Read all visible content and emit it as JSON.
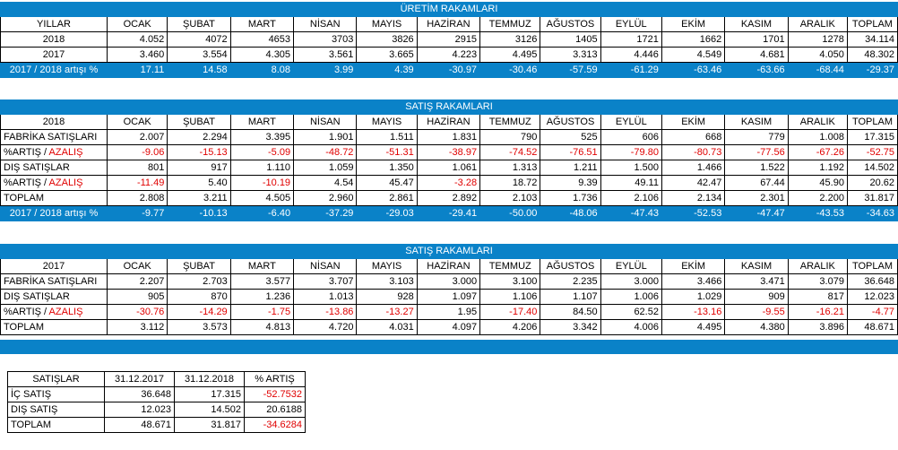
{
  "uretim": {
    "title": "ÜRETİM RAKAMLARI",
    "headers": [
      "YILLAR",
      "OCAK",
      "ŞUBAT",
      "MART",
      "NİSAN",
      "MAYIS",
      "HAZİRAN",
      "TEMMUZ",
      "AĞUSTOS",
      "EYLÜL",
      "EKİM",
      "KASIM",
      "ARALIK",
      "TOPLAM"
    ],
    "rows": [
      [
        "2018",
        "4.052",
        "4072",
        "4653",
        "3703",
        "3826",
        "2915",
        "3126",
        "1405",
        "1721",
        "1662",
        "1701",
        "1278",
        "34.114"
      ],
      [
        "2017",
        "3.460",
        "3.554",
        "4.305",
        "3.561",
        "3.665",
        "4.223",
        "4.495",
        "3.313",
        "4.446",
        "4.549",
        "4.681",
        "4.050",
        "48.302"
      ]
    ],
    "footer": [
      "2017 / 2018 artışı %",
      "17.11",
      "14.58",
      "8.08",
      "3.99",
      "4.39",
      "-30.97",
      "-30.46",
      "-57.59",
      "-61.29",
      "-63.46",
      "-63.66",
      "-68.44",
      "-29.37"
    ]
  },
  "satis2018": {
    "title": "SATIŞ RAKAMLARI",
    "headers": [
      "2018",
      "OCAK",
      "ŞUBAT",
      "MART",
      "NİSAN",
      "MAYIS",
      "HAZİRAN",
      "TEMMUZ",
      "AĞUSTOS",
      "EYLÜL",
      "EKİM",
      "KASIM",
      "ARALIK",
      "TOPLAM"
    ],
    "rows": [
      {
        "label": "FABRİKA SATIŞLARI",
        "values": [
          "2.007",
          "2.294",
          "3.395",
          "1.901",
          "1.511",
          "1.831",
          "790",
          "525",
          "606",
          "668",
          "779",
          "1.008",
          "17.315"
        ]
      },
      {
        "label_a": "%ARTIŞ / ",
        "label_b": "AZALIŞ",
        "values": [
          "-9.06",
          "-15.13",
          "-5.09",
          "-48.72",
          "-51.31",
          "-38.97",
          "-74.52",
          "-76.51",
          "-79.80",
          "-80.73",
          "-77.56",
          "-67.26",
          "-52.75"
        ]
      },
      {
        "label": "DIŞ SATIŞLAR",
        "values": [
          "801",
          "917",
          "1.110",
          "1.059",
          "1.350",
          "1.061",
          "1.313",
          "1.211",
          "1.500",
          "1.466",
          "1.522",
          "1.192",
          "14.502"
        ]
      },
      {
        "label_a": "%ARTIŞ / ",
        "label_b": "AZALIŞ",
        "values": [
          "-11.49",
          "5.40",
          "-10.19",
          "4.54",
          "45.47",
          "-3.28",
          "18.72",
          "9.39",
          "49.11",
          "42.47",
          "67.44",
          "45.90",
          "20.62"
        ]
      },
      {
        "label": "TOPLAM",
        "values": [
          "2.808",
          "3.211",
          "4.505",
          "2.960",
          "2.861",
          "2.892",
          "2.103",
          "1.736",
          "2.106",
          "2.134",
          "2.301",
          "2.200",
          "31.817"
        ]
      }
    ],
    "footer": [
      "2017 / 2018 artışı %",
      "-9.77",
      "-10.13",
      "-6.40",
      "-37.29",
      "-29.03",
      "-29.41",
      "-50.00",
      "-48.06",
      "-47.43",
      "-52.53",
      "-47.47",
      "-43.53",
      "-34.63"
    ]
  },
  "satis2017": {
    "title": "SATIŞ RAKAMLARI",
    "headers": [
      "2017",
      "OCAK",
      "ŞUBAT",
      "MART",
      "NİSAN",
      "MAYIS",
      "HAZİRAN",
      "TEMMUZ",
      "AĞUSTOS",
      "EYLÜL",
      "EKİM",
      "KASIM",
      "ARALIK",
      "TOPLAM"
    ],
    "rows": [
      {
        "label": "FABRİKA SATIŞLARI",
        "values": [
          "2.207",
          "2.703",
          "3.577",
          "3.707",
          "3.103",
          "3.000",
          "3.100",
          "2.235",
          "3.000",
          "3.466",
          "3.471",
          "3.079",
          "36.648"
        ]
      },
      {
        "label": "DIŞ SATIŞLAR",
        "values": [
          "905",
          "870",
          "1.236",
          "1.013",
          "928",
          "1.097",
          "1.106",
          "1.107",
          "1.006",
          "1.029",
          "909",
          "817",
          "12.023"
        ]
      },
      {
        "label_a": "%ARTIŞ / ",
        "label_b": "AZALIŞ",
        "values": [
          "-30.76",
          "-14.29",
          "-1.75",
          "-13.86",
          "-13.27",
          "1.95",
          "-17.40",
          "84.50",
          "62.52",
          "-13.16",
          "-9.55",
          "-16.21",
          "-4.77"
        ]
      },
      {
        "label": "TOPLAM",
        "values": [
          "3.112",
          "3.573",
          "4.813",
          "4.720",
          "4.031",
          "4.097",
          "4.206",
          "3.342",
          "4.006",
          "4.495",
          "4.380",
          "3.896",
          "48.671"
        ]
      }
    ]
  },
  "summary": {
    "headers": [
      "SATIŞLAR",
      "31.12.2017",
      "31.12.2018",
      "% ARTIŞ"
    ],
    "rows": [
      [
        "İÇ SATIŞ",
        "36.648",
        "17.315",
        "-52.7532"
      ],
      [
        "DIŞ SATIŞ",
        "12.023",
        "14.502",
        "20.6188"
      ],
      [
        "TOPLAM",
        "48.671",
        "31.817",
        "-34.6284"
      ]
    ]
  },
  "colors": {
    "header_blue": "#0a82c8",
    "negative": "#e00000"
  }
}
